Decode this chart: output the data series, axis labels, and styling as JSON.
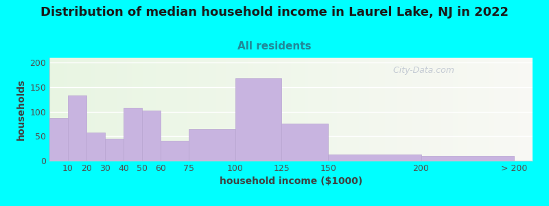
{
  "title": "Distribution of median household income in Laurel Lake, NJ in 2022",
  "subtitle": "All residents",
  "xlabel": "household income ($1000)",
  "ylabel": "households",
  "background_color": "#00FFFF",
  "bar_color": "#c8b4e0",
  "bar_edge_color": "#b8a4d0",
  "values": [
    87,
    133,
    58,
    45,
    108,
    102,
    40,
    65,
    168,
    76,
    12,
    10
  ],
  "bar_widths": [
    10,
    10,
    10,
    10,
    10,
    10,
    15,
    25,
    25,
    25,
    50,
    50
  ],
  "bar_lefts": [
    0,
    10,
    20,
    30,
    40,
    50,
    60,
    75,
    100,
    125,
    150,
    200
  ],
  "xlim": [
    0,
    260
  ],
  "ylim": [
    0,
    210
  ],
  "yticks": [
    0,
    50,
    100,
    150,
    200
  ],
  "xtick_positions": [
    10,
    20,
    30,
    40,
    50,
    60,
    75,
    100,
    125,
    150,
    200,
    250
  ],
  "xtick_labels": [
    "10",
    "20",
    "30",
    "40",
    "50",
    "60",
    "75",
    "100",
    "125",
    "150",
    "200",
    "> 200"
  ],
  "watermark": "  City-Data.com",
  "watermark_icon": "ⓘ",
  "title_fontsize": 13,
  "subtitle_fontsize": 11,
  "label_fontsize": 10,
  "tick_fontsize": 9,
  "bg_left_color": "#e8f5e2",
  "bg_right_color": "#f8f8f4"
}
